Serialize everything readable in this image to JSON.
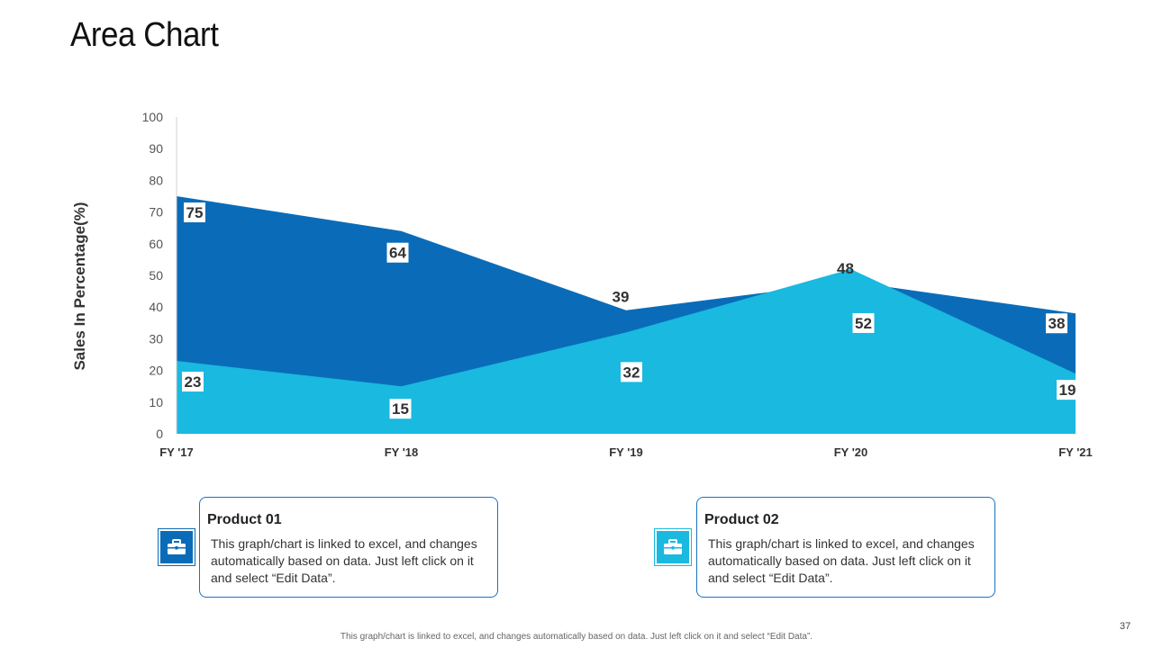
{
  "slide": {
    "title": "Area Chart",
    "page_number": "37",
    "footer": "This graph/chart is linked to excel, and changes automatically  based on data. Just left click  on it and select  “Edit Data”."
  },
  "chart_data": {
    "type": "area",
    "title": "Area Chart",
    "xlabel": "",
    "ylabel": "Sales In Percentage(%)",
    "categories": [
      "FY '17",
      "FY '18",
      "FY '19",
      "FY '20",
      "FY '21"
    ],
    "ylim": [
      0,
      100
    ],
    "yticks": [
      0,
      10,
      20,
      30,
      40,
      50,
      60,
      70,
      80,
      90,
      100
    ],
    "grid": false,
    "series": [
      {
        "name": "Product 01",
        "values": [
          75,
          64,
          39,
          48,
          38
        ],
        "color": "#0a6cb8"
      },
      {
        "name": "Product 02",
        "values": [
          23,
          15,
          32,
          52,
          19
        ],
        "color": "#19b9e0"
      }
    ]
  },
  "cards": [
    {
      "title": "Product 01",
      "text": "This graph/chart is linked to excel, and changes automatically based on data. Just left click on it and select “Edit Data”.",
      "icon": "briefcase-icon",
      "color": "#0a6cb8"
    },
    {
      "title": "Product 02",
      "text": "This graph/chart is linked to excel, and changes automatically based on data. Just left click on it and select “Edit Data”.",
      "icon": "briefcase-icon",
      "color": "#19b9e0"
    }
  ]
}
